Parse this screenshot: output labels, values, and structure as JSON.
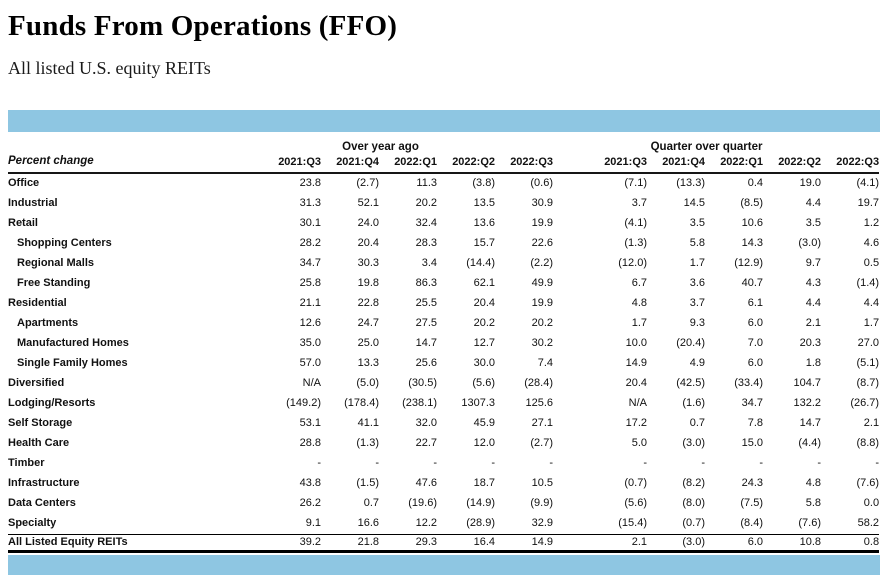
{
  "page": {
    "title": "Funds From Operations (FFO)",
    "subtitle": "All listed U.S. equity REITs"
  },
  "colors": {
    "band_blue": "#8EC6E2"
  },
  "table": {
    "corner_label": "Percent change",
    "groups": [
      {
        "label": "Over year ago",
        "columns": [
          "2021:Q3",
          "2021:Q4",
          "2022:Q1",
          "2022:Q2",
          "2022:Q3"
        ]
      },
      {
        "label": "Quarter over quarter",
        "columns": [
          "2021:Q3",
          "2021:Q4",
          "2022:Q1",
          "2022:Q2",
          "2022:Q3"
        ]
      }
    ],
    "rows": [
      {
        "label": "Office",
        "indent": false,
        "oya": [
          "23.8",
          "(2.7)",
          "11.3",
          "(3.8)",
          "(0.6)"
        ],
        "qoq": [
          "(7.1)",
          "(13.3)",
          "0.4",
          "19.0",
          "(4.1)"
        ]
      },
      {
        "label": "Industrial",
        "indent": false,
        "oya": [
          "31.3",
          "52.1",
          "20.2",
          "13.5",
          "30.9"
        ],
        "qoq": [
          "3.7",
          "14.5",
          "(8.5)",
          "4.4",
          "19.7"
        ]
      },
      {
        "label": "Retail",
        "indent": false,
        "oya": [
          "30.1",
          "24.0",
          "32.4",
          "13.6",
          "19.9"
        ],
        "qoq": [
          "(4.1)",
          "3.5",
          "10.6",
          "3.5",
          "1.2"
        ]
      },
      {
        "label": "Shopping Centers",
        "indent": true,
        "oya": [
          "28.2",
          "20.4",
          "28.3",
          "15.7",
          "22.6"
        ],
        "qoq": [
          "(1.3)",
          "5.8",
          "14.3",
          "(3.0)",
          "4.6"
        ]
      },
      {
        "label": "Regional Malls",
        "indent": true,
        "oya": [
          "34.7",
          "30.3",
          "3.4",
          "(14.4)",
          "(2.2)"
        ],
        "qoq": [
          "(12.0)",
          "1.7",
          "(12.9)",
          "9.7",
          "0.5"
        ]
      },
      {
        "label": "Free Standing",
        "indent": true,
        "oya": [
          "25.8",
          "19.8",
          "86.3",
          "62.1",
          "49.9"
        ],
        "qoq": [
          "6.7",
          "3.6",
          "40.7",
          "4.3",
          "(1.4)"
        ]
      },
      {
        "label": "Residential",
        "indent": false,
        "oya": [
          "21.1",
          "22.8",
          "25.5",
          "20.4",
          "19.9"
        ],
        "qoq": [
          "4.8",
          "3.7",
          "6.1",
          "4.4",
          "4.4"
        ]
      },
      {
        "label": "Apartments",
        "indent": true,
        "oya": [
          "12.6",
          "24.7",
          "27.5",
          "20.2",
          "20.2"
        ],
        "qoq": [
          "1.7",
          "9.3",
          "6.0",
          "2.1",
          "1.7"
        ]
      },
      {
        "label": "Manufactured Homes",
        "indent": true,
        "oya": [
          "35.0",
          "25.0",
          "14.7",
          "12.7",
          "30.2"
        ],
        "qoq": [
          "10.0",
          "(20.4)",
          "7.0",
          "20.3",
          "27.0"
        ]
      },
      {
        "label": "Single Family Homes",
        "indent": true,
        "oya": [
          "57.0",
          "13.3",
          "25.6",
          "30.0",
          "7.4"
        ],
        "qoq": [
          "14.9",
          "4.9",
          "6.0",
          "1.8",
          "(5.1)"
        ]
      },
      {
        "label": "Diversified",
        "indent": false,
        "oya": [
          "N/A",
          "(5.0)",
          "(30.5)",
          "(5.6)",
          "(28.4)"
        ],
        "qoq": [
          "20.4",
          "(42.5)",
          "(33.4)",
          "104.7",
          "(8.7)"
        ]
      },
      {
        "label": "Lodging/Resorts",
        "indent": false,
        "oya": [
          "(149.2)",
          "(178.4)",
          "(238.1)",
          "1307.3",
          "125.6"
        ],
        "qoq": [
          "N/A",
          "(1.6)",
          "34.7",
          "132.2",
          "(26.7)"
        ]
      },
      {
        "label": "Self Storage",
        "indent": false,
        "oya": [
          "53.1",
          "41.1",
          "32.0",
          "45.9",
          "27.1"
        ],
        "qoq": [
          "17.2",
          "0.7",
          "7.8",
          "14.7",
          "2.1"
        ]
      },
      {
        "label": "Health Care",
        "indent": false,
        "oya": [
          "28.8",
          "(1.3)",
          "22.7",
          "12.0",
          "(2.7)"
        ],
        "qoq": [
          "5.0",
          "(3.0)",
          "15.0",
          "(4.4)",
          "(8.8)"
        ]
      },
      {
        "label": "Timber",
        "indent": false,
        "oya": [
          "-",
          "-",
          "-",
          "-",
          "-"
        ],
        "qoq": [
          "-",
          "-",
          "-",
          "-",
          "-"
        ]
      },
      {
        "label": "Infrastructure",
        "indent": false,
        "oya": [
          "43.8",
          "(1.5)",
          "47.6",
          "18.7",
          "10.5"
        ],
        "qoq": [
          "(0.7)",
          "(8.2)",
          "24.3",
          "4.8",
          "(7.6)"
        ]
      },
      {
        "label": "Data Centers",
        "indent": false,
        "oya": [
          "26.2",
          "0.7",
          "(19.6)",
          "(14.9)",
          "(9.9)"
        ],
        "qoq": [
          "(5.6)",
          "(8.0)",
          "(7.5)",
          "5.8",
          "0.0"
        ]
      },
      {
        "label": "Specialty",
        "indent": false,
        "oya": [
          "9.1",
          "16.6",
          "12.2",
          "(28.9)",
          "32.9"
        ],
        "qoq": [
          "(15.4)",
          "(0.7)",
          "(8.4)",
          "(7.6)",
          "58.2"
        ]
      }
    ],
    "total_row": {
      "label": "All Listed Equity REITs",
      "oya": [
        "39.2",
        "21.8",
        "29.3",
        "16.4",
        "14.9"
      ],
      "qoq": [
        "2.1",
        "(3.0)",
        "6.0",
        "10.8",
        "0.8"
      ]
    }
  }
}
